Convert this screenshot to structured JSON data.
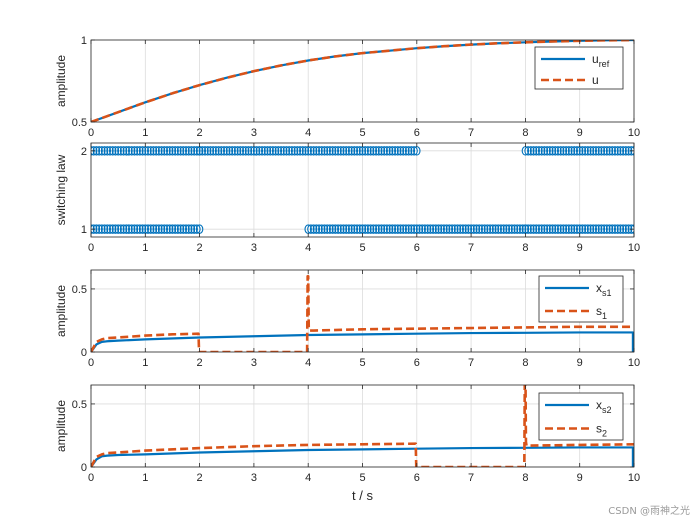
{
  "watermark": "CSDN @雨神之光",
  "colors": {
    "blue": "#0072BD",
    "orange": "#D95319",
    "grid": "#dcdcdc",
    "axis": "#262626"
  },
  "chart_data": [
    {
      "type": "line",
      "ylabel": "amplitude",
      "xlabel": "",
      "xlim": [
        0,
        10
      ],
      "ylim": [
        0.5,
        1
      ],
      "xticks": [
        0,
        1,
        2,
        3,
        4,
        5,
        6,
        7,
        8,
        9,
        10
      ],
      "yticks": [
        0.5,
        1
      ],
      "ytick_labels": [
        "0.5",
        "1"
      ],
      "grid": true,
      "legend_position": "top-right",
      "series": [
        {
          "label_main": "u",
          "label_sub": "ref",
          "style": "solid",
          "color": "blue",
          "x": [
            0,
            0.5,
            1,
            1.5,
            2,
            2.5,
            3,
            3.5,
            4,
            4.5,
            5,
            5.5,
            6,
            6.5,
            7,
            7.5,
            8,
            8.5,
            9,
            9.5,
            10
          ],
          "y": [
            0.5,
            0.56,
            0.62,
            0.675,
            0.725,
            0.77,
            0.81,
            0.845,
            0.875,
            0.9,
            0.92,
            0.935,
            0.95,
            0.962,
            0.972,
            0.98,
            0.986,
            0.991,
            0.995,
            0.998,
            1.0
          ]
        },
        {
          "label_main": "u",
          "label_sub": "",
          "style": "dashed",
          "color": "orange",
          "x": [
            0,
            0.5,
            1,
            1.5,
            2,
            2.5,
            3,
            3.5,
            4,
            4.5,
            5,
            5.5,
            6,
            6.5,
            7,
            7.5,
            8,
            8.5,
            9,
            9.5,
            10
          ],
          "y": [
            0.5,
            0.56,
            0.62,
            0.675,
            0.725,
            0.77,
            0.81,
            0.845,
            0.875,
            0.9,
            0.92,
            0.935,
            0.95,
            0.962,
            0.972,
            0.98,
            0.986,
            0.991,
            0.995,
            0.998,
            1.0
          ]
        }
      ]
    },
    {
      "type": "scatter",
      "ylabel": "switching law",
      "xlabel": "",
      "xlim": [
        0,
        10
      ],
      "ylim": [
        0.9,
        2.1
      ],
      "xticks": [
        0,
        1,
        2,
        3,
        4,
        5,
        6,
        7,
        8,
        9,
        10
      ],
      "yticks": [
        1,
        2
      ],
      "ytick_labels": [
        "1",
        "2"
      ],
      "grid": true,
      "marker": "circle",
      "marker_color": "blue",
      "marker_spacing": 0.05,
      "mode_segments": [
        {
          "x_start": 0,
          "x_end": 2,
          "value": 1
        },
        {
          "x_start": 2,
          "x_end": 6,
          "value": 2
        },
        {
          "x_start": 4,
          "x_end": 8,
          "value": 1
        },
        {
          "x_start": 8,
          "x_end": 10,
          "value": 2
        },
        {
          "x_start": 0,
          "x_end": 2,
          "value": 2
        },
        {
          "x_start": 8,
          "x_end": 10,
          "value": 1
        }
      ]
    },
    {
      "type": "line",
      "ylabel": "amplitude",
      "xlabel": "",
      "xlim": [
        0,
        10
      ],
      "ylim": [
        0,
        0.65
      ],
      "xticks": [
        0,
        1,
        2,
        3,
        4,
        5,
        6,
        7,
        8,
        9,
        10
      ],
      "yticks": [
        0,
        0.5
      ],
      "ytick_labels": [
        "0",
        "0.5"
      ],
      "grid": true,
      "legend_position": "top-right",
      "series": [
        {
          "label_main": "x",
          "label_sub": "s1",
          "style": "solid",
          "color": "blue",
          "x": [
            0,
            0.05,
            0.1,
            0.2,
            0.3,
            0.5,
            1,
            2,
            3,
            4,
            5,
            6,
            7,
            8,
            9,
            9.98,
            9.98,
            10
          ],
          "y": [
            0,
            0.03,
            0.06,
            0.08,
            0.085,
            0.09,
            0.1,
            0.115,
            0.125,
            0.135,
            0.14,
            0.145,
            0.15,
            0.152,
            0.155,
            0.155,
            0,
            0
          ]
        },
        {
          "label_main": "s",
          "label_sub": "1",
          "style": "dashed",
          "color": "orange",
          "x": [
            0,
            0.05,
            0.1,
            0.2,
            0.3,
            0.5,
            1,
            1.5,
            1.98,
            1.99,
            2.0,
            3.98,
            3.99,
            4.0,
            4.01,
            4.02,
            4.1,
            5,
            6,
            7,
            8,
            9,
            10
          ],
          "y": [
            0,
            0.04,
            0.08,
            0.1,
            0.11,
            0.115,
            0.13,
            0.14,
            0.145,
            0,
            0,
            0,
            0.6,
            0.6,
            0.2,
            0.17,
            0.17,
            0.18,
            0.185,
            0.19,
            0.195,
            0.2,
            0.2
          ]
        }
      ]
    },
    {
      "type": "line",
      "ylabel": "amplitude",
      "xlabel": "t / s",
      "xlim": [
        0,
        10
      ],
      "ylim": [
        0,
        0.65
      ],
      "xticks": [
        0,
        1,
        2,
        3,
        4,
        5,
        6,
        7,
        8,
        9,
        10
      ],
      "yticks": [
        0,
        0.5
      ],
      "ytick_labels": [
        "0",
        "0.5"
      ],
      "grid": true,
      "legend_position": "top-right",
      "series": [
        {
          "label_main": "x",
          "label_sub": "s2",
          "style": "solid",
          "color": "blue",
          "x": [
            0,
            0.05,
            0.1,
            0.2,
            0.3,
            0.5,
            1,
            2,
            3,
            4,
            5,
            6,
            7,
            8,
            9,
            9.98,
            9.98,
            10
          ],
          "y": [
            0,
            0.03,
            0.06,
            0.085,
            0.09,
            0.095,
            0.1,
            0.115,
            0.125,
            0.135,
            0.14,
            0.145,
            0.15,
            0.152,
            0.155,
            0.155,
            0,
            0
          ]
        },
        {
          "label_main": "s",
          "label_sub": "2",
          "style": "dashed",
          "color": "orange",
          "x": [
            0,
            0.05,
            0.1,
            0.2,
            0.3,
            0.5,
            1,
            2,
            3,
            4,
            5,
            5.98,
            5.99,
            6.0,
            7.98,
            7.99,
            8.0,
            8.01,
            8.02,
            8.1,
            9,
            10
          ],
          "y": [
            0,
            0.04,
            0.08,
            0.1,
            0.11,
            0.115,
            0.13,
            0.15,
            0.165,
            0.175,
            0.18,
            0.185,
            0,
            0,
            0,
            0.8,
            0.8,
            0.2,
            0.17,
            0.17,
            0.175,
            0.18
          ]
        }
      ]
    }
  ]
}
